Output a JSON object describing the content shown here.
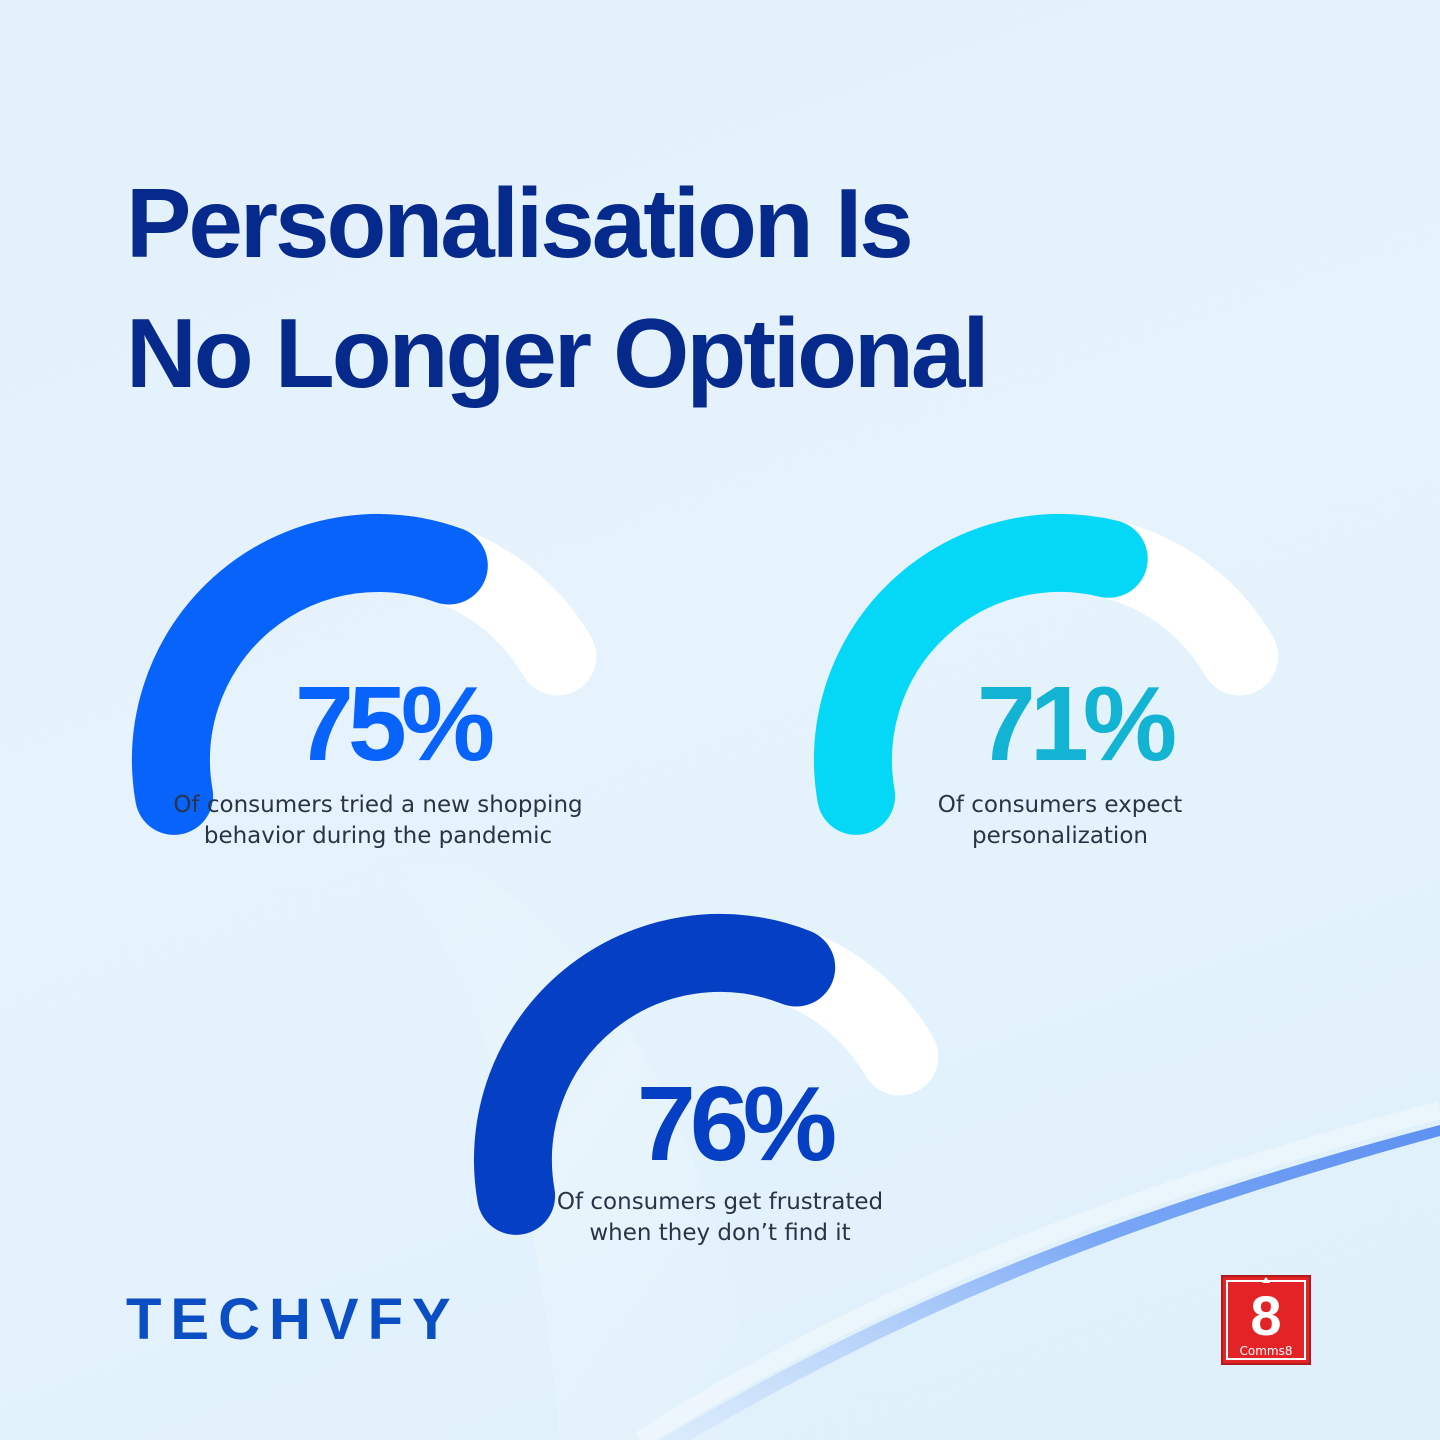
{
  "title": {
    "line1": "Personalisation Is",
    "line2": "No Longer Optional"
  },
  "colors": {
    "background": "#e3f1fb",
    "title": "#062a8c",
    "track": "#ffffff",
    "label": "#2b3446"
  },
  "chart_data": [
    {
      "type": "gauge",
      "value": 75,
      "max": 100,
      "value_label": "75%",
      "label_lines": [
        "Of consumers tried a new shopping",
        "behavior during the pandemic"
      ],
      "color": "#0763fa",
      "text_color": "#0763fa"
    },
    {
      "type": "gauge",
      "value": 71,
      "max": 100,
      "value_label": "71%",
      "label_lines": [
        "Of consumers expect",
        "personalization"
      ],
      "color": "#05d7f7",
      "text_color": "#12b3d3"
    },
    {
      "type": "gauge",
      "value": 76,
      "max": 100,
      "value_label": "76%",
      "label_lines": [
        "Of consumers get frustrated",
        "when they don’t find it"
      ],
      "color": "#0540c4",
      "text_color": "#0540c4"
    }
  ],
  "brand": {
    "left_logo": "TECHVFY",
    "right_logo_digit": "8",
    "right_logo_text": "Comms8"
  }
}
